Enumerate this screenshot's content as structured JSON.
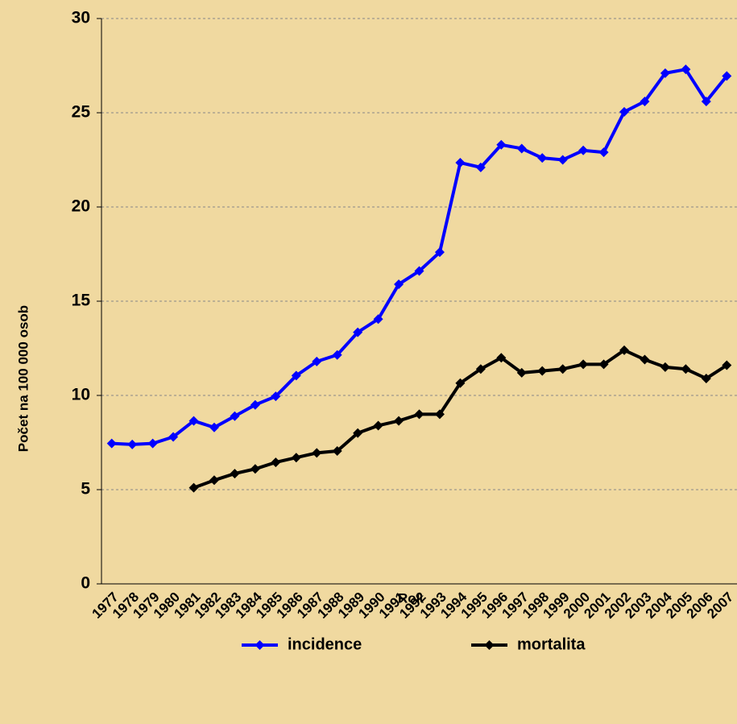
{
  "chart_data": {
    "type": "line",
    "x_label": "Rok",
    "y_label": "Počet na 100 000 osob",
    "categories": [
      "1977",
      "1978",
      "1979",
      "1980",
      "1981",
      "1982",
      "1983",
      "1984",
      "1985",
      "1986",
      "1987",
      "1988",
      "1989",
      "1990",
      "1991",
      "1992",
      "1993",
      "1994",
      "1995",
      "1996",
      "1997",
      "1998",
      "1999",
      "2000",
      "2001",
      "2002",
      "2003",
      "2004",
      "2005",
      "2006",
      "2007"
    ],
    "series": [
      {
        "name": "incidence",
        "color": "#0000ff",
        "values": [
          7.45,
          7.4,
          7.45,
          7.8,
          8.65,
          8.3,
          8.9,
          9.5,
          9.95,
          11.05,
          11.8,
          12.15,
          13.35,
          14.05,
          15.9,
          16.6,
          17.6,
          22.35,
          22.1,
          23.3,
          23.1,
          22.6,
          22.5,
          23.0,
          22.9,
          25.05,
          25.6,
          27.1,
          27.3,
          25.6,
          26.95
        ]
      },
      {
        "name": "mortalita",
        "color": "#000000",
        "values": [
          null,
          null,
          null,
          null,
          5.1,
          5.5,
          5.85,
          6.1,
          6.45,
          6.7,
          6.95,
          7.05,
          8.0,
          8.4,
          8.65,
          9.0,
          9.0,
          10.65,
          11.4,
          12.0,
          11.2,
          11.3,
          11.4,
          11.65,
          11.65,
          12.4,
          11.9,
          11.5,
          11.4,
          10.9,
          11.6
        ]
      }
    ],
    "ylim": [
      0,
      30
    ],
    "yticks": [
      0,
      5,
      10,
      15,
      20,
      25,
      30
    ],
    "grid": true,
    "legend": "bottom"
  }
}
